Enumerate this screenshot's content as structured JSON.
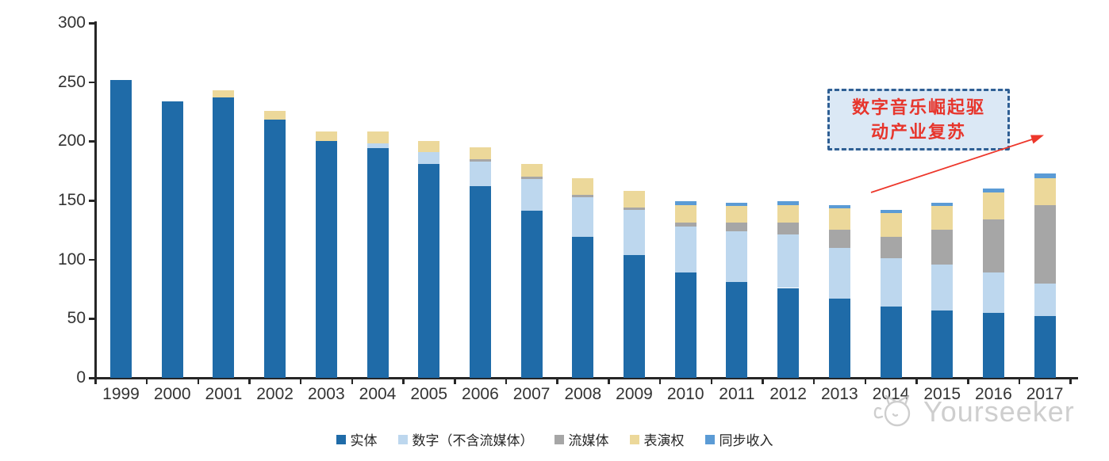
{
  "chart_data": {
    "type": "bar",
    "stacked": true,
    "categories": [
      "1999",
      "2000",
      "2001",
      "2002",
      "2003",
      "2004",
      "2005",
      "2006",
      "2007",
      "2008",
      "2009",
      "2010",
      "2011",
      "2012",
      "2013",
      "2014",
      "2015",
      "2016",
      "2017"
    ],
    "series": [
      {
        "name": "实体",
        "color": "#1f6ba8",
        "values": [
          252,
          234,
          237,
          218,
          200,
          194,
          181,
          162,
          141,
          119,
          104,
          89,
          81,
          76,
          67,
          60,
          57,
          55,
          52
        ]
      },
      {
        "name": "数字（不含流媒体）",
        "color": "#bdd7ee",
        "values": [
          0,
          0,
          0,
          0,
          0,
          4,
          10,
          21,
          27,
          34,
          38,
          39,
          43,
          45,
          43,
          41,
          39,
          34,
          28
        ]
      },
      {
        "name": "流媒体",
        "color": "#a6a6a6",
        "values": [
          0,
          0,
          0,
          0,
          0,
          0,
          0,
          2,
          2,
          2,
          2,
          3,
          7,
          10,
          15,
          18,
          29,
          45,
          66
        ]
      },
      {
        "name": "表演权",
        "color": "#ecd89a",
        "values": [
          0,
          0,
          6,
          8,
          8,
          10,
          9,
          10,
          11,
          14,
          14,
          15,
          14,
          15,
          18,
          20,
          20,
          23,
          23
        ]
      },
      {
        "name": "同步收入",
        "color": "#5b9bd5",
        "values": [
          0,
          0,
          0,
          0,
          0,
          0,
          0,
          0,
          0,
          0,
          0,
          3,
          3,
          3,
          3,
          3,
          3,
          3,
          4
        ]
      }
    ],
    "totals": [
      252,
      234,
      243,
      226,
      208,
      208,
      200,
      195,
      181,
      169,
      158,
      149,
      148,
      149,
      146,
      142,
      148,
      160,
      173
    ],
    "ylim": [
      0,
      300
    ],
    "yticks": [
      0,
      50,
      100,
      150,
      200,
      250,
      300
    ],
    "grid": false,
    "legend_position": "bottom",
    "title": ""
  },
  "annotation": {
    "text": "数字音乐崛起驱动产业复苏",
    "lines": [
      "数字音乐崛起驱",
      "动产业复苏"
    ],
    "fill_color": "#dbe8f5",
    "border_color": "#2f5f94",
    "text_color": "#e7352c",
    "arrow_color": "#ed372b"
  },
  "watermark": {
    "text": "Yourseeker",
    "logo": "cat-logo-icon",
    "color": "#c3c3c3"
  }
}
